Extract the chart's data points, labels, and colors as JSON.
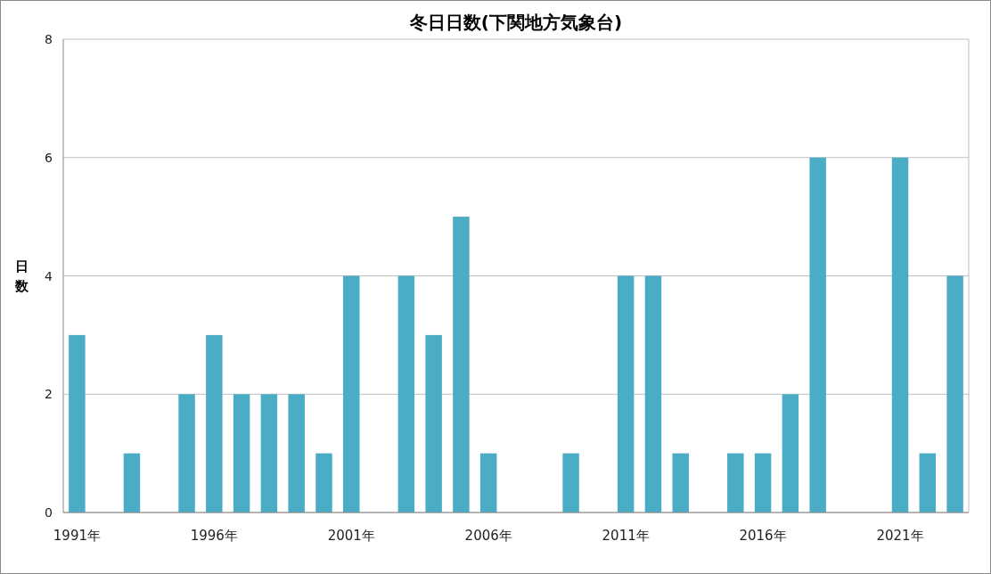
{
  "chart_data": {
    "type": "bar",
    "title": "冬日日数(下関地方気象台)",
    "ylabel": "日数",
    "categories": [
      "1991年",
      null,
      null,
      null,
      null,
      "1996年",
      null,
      null,
      null,
      null,
      "2001年",
      null,
      null,
      null,
      null,
      "2006年",
      null,
      null,
      null,
      null,
      "2011年",
      null,
      null,
      null,
      null,
      "2016年",
      null,
      null,
      null,
      null,
      "2021年",
      null,
      null
    ],
    "values": [
      3,
      0,
      1,
      0,
      2,
      3,
      2,
      2,
      2,
      1,
      4,
      0,
      4,
      3,
      5,
      1,
      0,
      0,
      1,
      0,
      4,
      4,
      1,
      0,
      1,
      1,
      2,
      6,
      0,
      0,
      6,
      1,
      4
    ],
    "color": "#4bacc6",
    "ylim": [
      0,
      8
    ],
    "yticks": [
      0,
      2,
      4,
      6,
      8
    ],
    "grid": "y"
  }
}
